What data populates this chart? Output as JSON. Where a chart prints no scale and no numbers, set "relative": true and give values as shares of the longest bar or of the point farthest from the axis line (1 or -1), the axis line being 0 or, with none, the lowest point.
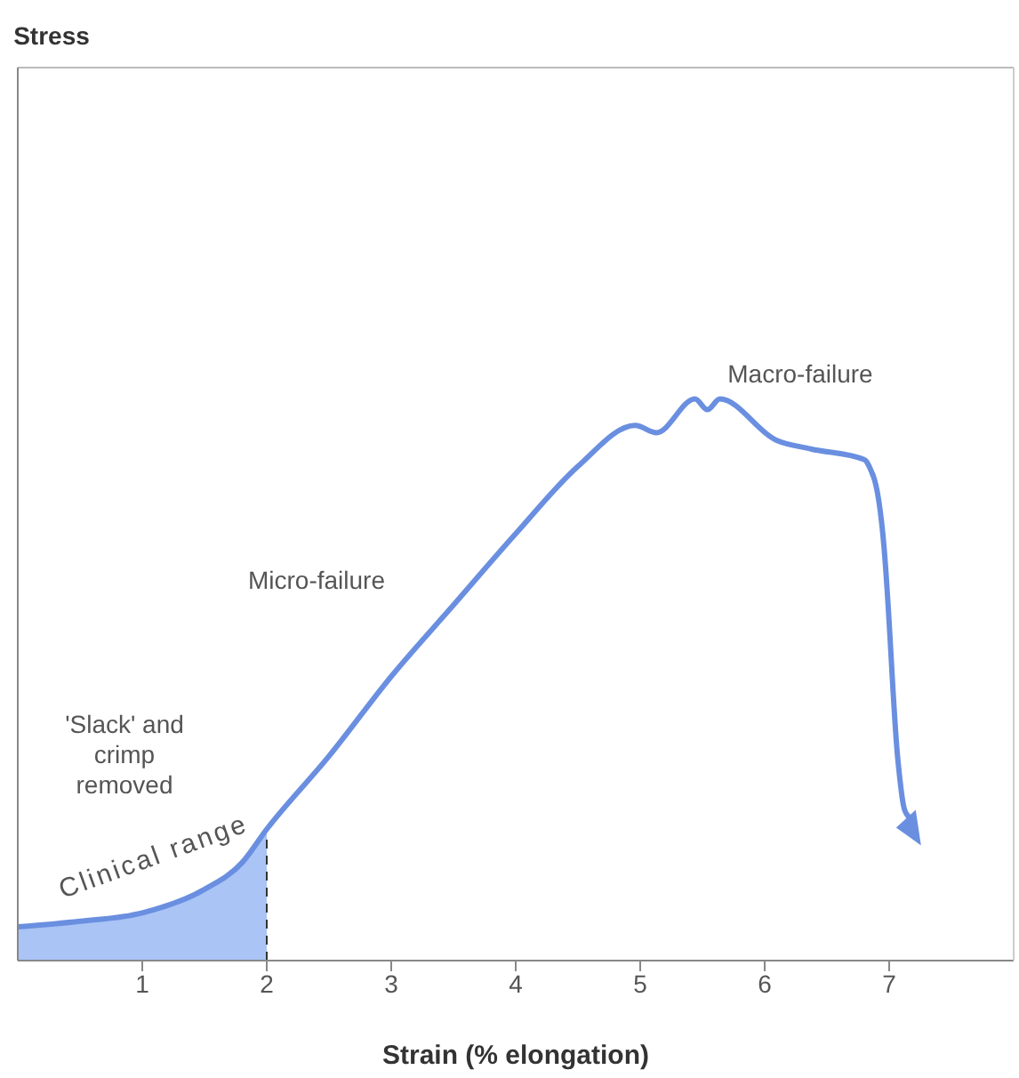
{
  "chart_data": {
    "type": "line",
    "relative": true,
    "xlabel": "Strain (% elongation)",
    "xlim": [
      0,
      8
    ],
    "xticks": [
      1,
      2,
      3,
      4,
      5,
      6,
      7
    ],
    "tick_labels": "x",
    "marker": "none",
    "line_style": "solid",
    "series": [
      {
        "type": "area",
        "color": "#a9c4f5",
        "x": [
          0,
          0.5,
          1,
          1.5,
          1.8,
          2
        ],
        "values": [
          0.06,
          0.07,
          0.085,
          0.127,
          0.174,
          0.234
        ]
      },
      {
        "color": "#6a8fe0",
        "x": [
          0,
          0.5,
          1,
          1.5,
          1.8,
          2,
          2.5,
          3,
          3.5,
          4,
          4.5,
          4.96,
          5.13,
          5.44,
          5.54,
          5.64,
          6.09,
          6.37,
          6.8,
          6.87
        ],
        "values": [
          0.06,
          0.07,
          0.085,
          0.127,
          0.174,
          0.234,
          0.364,
          0.506,
          0.633,
          0.76,
          0.88,
          0.953,
          0.94,
          1.0,
          0.981,
          1.0,
          0.927,
          0.911,
          0.892,
          0.864
        ]
      }
    ],
    "ref_lines": [
      {
        "axis": "x",
        "value": 2,
        "line_style": "dashed",
        "color": "#333333"
      }
    ],
    "annotations": [
      "'Slack' and\ncrimp\nremoved",
      "Clinical range",
      "Micro-failure",
      "Macro-failure",
      "Stress"
    ]
  }
}
